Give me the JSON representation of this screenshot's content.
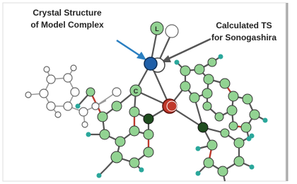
{
  "callouts": [
    {
      "lines": [
        "Crystal Structure",
        "of Model Complex"
      ]
    },
    {
      "lines": [
        "Calculated TS",
        "for Sonogashira"
      ]
    }
  ],
  "atom_labels": [
    "L",
    "C"
  ]
}
